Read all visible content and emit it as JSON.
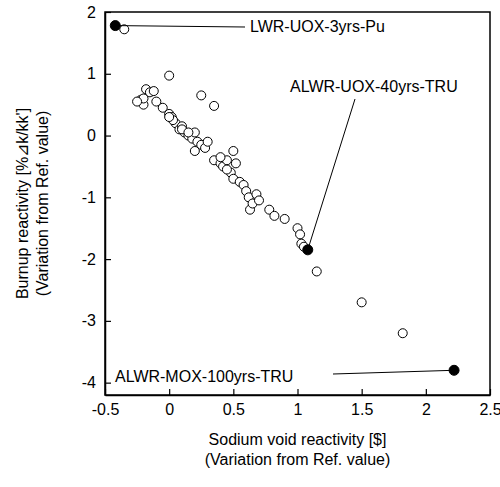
{
  "chart_data": {
    "type": "scatter",
    "x_label": [
      "Sodium void reactivity [$]",
      "(Variation from Ref. value)"
    ],
    "y_label": [
      "Burnup reactivity [%⊿k/kk']",
      "(Variation from Ref. value)"
    ],
    "xlim": [
      -0.5,
      2.5
    ],
    "ylim": [
      -4.2,
      2
    ],
    "xticks": [
      -0.5,
      0,
      0.5,
      1,
      1.5,
      2,
      2.5
    ],
    "yticks": [
      -4,
      -3,
      -2,
      -1,
      0,
      1,
      2
    ],
    "grid": false,
    "marker": "open-circle",
    "color": "#000000",
    "x": [
      -0.35,
      0.0,
      -0.22,
      -0.2,
      -0.18,
      -0.15,
      -0.12,
      -0.2,
      -0.1,
      -0.05,
      0.0,
      0.02,
      0.05,
      0.08,
      0.1,
      0.12,
      0.15,
      0.18,
      0.2,
      0.22,
      0.25,
      0.28,
      0.3,
      0.2,
      0.1,
      0.03,
      0.25,
      0.35,
      0.35,
      0.4,
      0.42,
      0.45,
      0.48,
      0.5,
      0.52,
      0.55,
      0.5,
      0.58,
      0.6,
      0.62,
      0.63,
      0.65,
      0.68,
      0.7,
      0.78,
      0.82,
      0.9,
      1.0,
      1.02,
      1.03,
      1.05,
      1.15,
      1.5,
      1.82,
      -0.25,
      0.0,
      0.15,
      0.4,
      0.45
    ],
    "values": [
      1.72,
      0.97,
      0.58,
      0.5,
      0.75,
      0.7,
      0.72,
      0.6,
      0.55,
      0.45,
      0.35,
      0.3,
      0.2,
      0.1,
      0.15,
      0.05,
      0.0,
      -0.05,
      0.05,
      -0.1,
      -0.15,
      -0.2,
      -0.1,
      -0.25,
      0.1,
      0.25,
      0.65,
      0.48,
      -0.4,
      -0.45,
      -0.5,
      -0.4,
      -0.6,
      -0.7,
      -0.45,
      -0.75,
      -0.25,
      -0.8,
      -0.9,
      -1.0,
      -1.2,
      -1.1,
      -0.95,
      -1.05,
      -1.2,
      -1.3,
      -1.35,
      -1.5,
      -1.6,
      -1.75,
      -1.8,
      -2.2,
      -2.7,
      -3.2,
      0.55,
      0.3,
      0.05,
      -0.35,
      -0.55
    ],
    "annotations": [
      {
        "text": "LWR-UOX-3yrs-Pu",
        "x": -0.42,
        "y": 1.78,
        "marker": "filled-circle"
      },
      {
        "text": "ALWR-UOX-40yrs-TRU",
        "x": 1.08,
        "y": -1.85,
        "marker": "filled-circle"
      },
      {
        "text": "ALWR-MOX-100yrs-TRU",
        "x": 2.22,
        "y": -3.8,
        "marker": "filled-circle"
      }
    ]
  }
}
